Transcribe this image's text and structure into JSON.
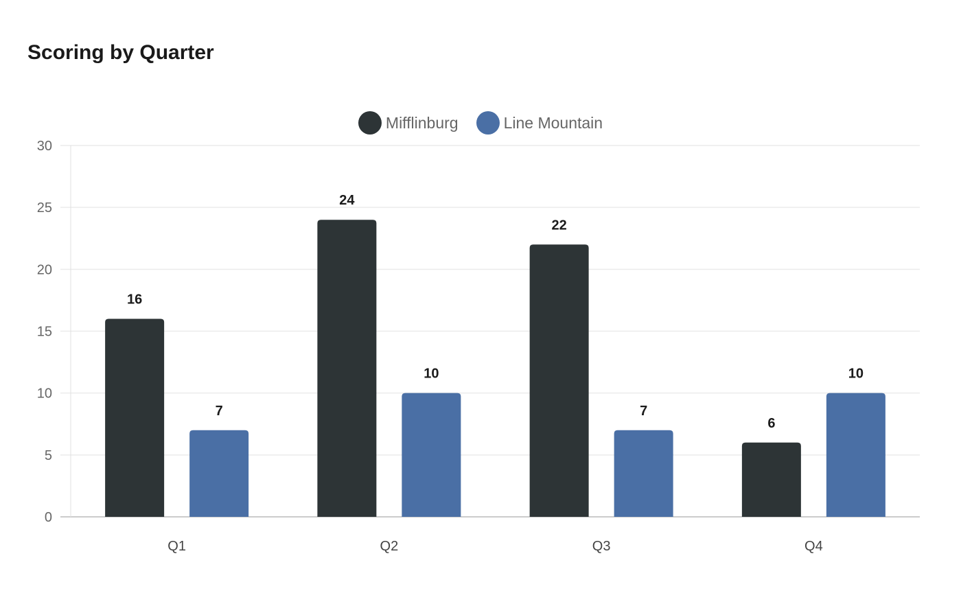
{
  "title": "Scoring by Quarter",
  "legend": [
    {
      "label": "Mifflinburg",
      "color": "#2d3436"
    },
    {
      "label": "Line Mountain",
      "color": "#4a6fa5"
    }
  ],
  "chart_data": {
    "type": "bar",
    "title": "Scoring by Quarter",
    "categories": [
      "Q1",
      "Q2",
      "Q3",
      "Q4"
    ],
    "series": [
      {
        "name": "Mifflinburg",
        "color": "#2d3436",
        "values": [
          16,
          24,
          22,
          6
        ]
      },
      {
        "name": "Line Mountain",
        "color": "#4a6fa5",
        "values": [
          7,
          10,
          7,
          10
        ]
      }
    ],
    "xlabel": "",
    "ylabel": "",
    "ylim": [
      0,
      30
    ],
    "yticks": [
      0,
      5,
      10,
      15,
      20,
      25,
      30
    ],
    "grid": true,
    "legend_position": "top",
    "data_labels": true
  }
}
